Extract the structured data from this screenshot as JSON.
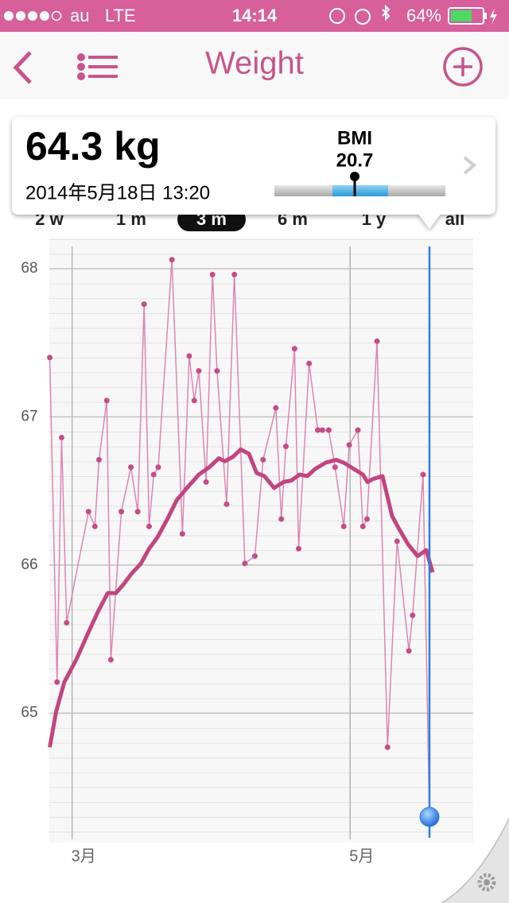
{
  "status_bar": {
    "carrier": "au",
    "network": "LTE",
    "time": "14:14",
    "battery": "64%"
  },
  "nav": {
    "title": "Weight"
  },
  "summary": {
    "weight": "64.3 kg",
    "datetime": "2014年5月18日 13:20",
    "bmi_label": "BMI",
    "bmi": "20.7"
  },
  "range_tabs": {
    "options": [
      "2 w",
      "1 m",
      "3 m",
      "6 m",
      "1 y",
      "all"
    ],
    "selected": 2
  },
  "chart_data": {
    "type": "line",
    "xlim": [
      -5,
      88
    ],
    "ylim": [
      64.18,
      68.15
    ],
    "xticks": [
      {
        "value": 0,
        "label": "3月"
      },
      {
        "value": 61,
        "label": "5月"
      }
    ],
    "yticks": [
      65,
      66,
      67,
      68
    ],
    "grid": true,
    "cursor_color": "#2f7fe0",
    "series": [
      {
        "color": "#dc86b3",
        "marker_color": "#c74b88",
        "line_width": 1.5,
        "markers": true,
        "x": [
          -4.9,
          -3.3,
          -2.3,
          -1.2,
          3.6,
          5.0,
          5.9,
          7.6,
          8.5,
          10.8,
          12.9,
          14.4,
          15.8,
          16.9,
          17.9,
          18.9,
          21.9,
          24.2,
          25.7,
          26.8,
          27.8,
          29.4,
          30.8,
          31.8,
          33.9,
          35.6,
          37.9,
          40.1,
          41.9,
          44.7,
          45.9,
          46.9,
          48.8,
          49.7,
          52.0,
          53.9,
          54.9,
          56.3,
          57.7,
          59.6,
          60.8,
          62.7,
          63.8,
          64.7,
          66.9,
          69.2,
          71.3,
          73.9,
          74.7,
          77.0,
          78.4
        ],
        "values": [
          67.4,
          65.21,
          66.86,
          65.61,
          66.36,
          66.26,
          66.71,
          67.11,
          65.36,
          66.36,
          66.66,
          66.36,
          67.76,
          66.26,
          66.61,
          66.66,
          68.06,
          66.21,
          67.41,
          67.11,
          67.31,
          66.56,
          67.96,
          67.31,
          66.41,
          67.96,
          66.01,
          66.06,
          66.71,
          67.06,
          66.31,
          66.8,
          67.46,
          66.11,
          67.36,
          66.91,
          66.91,
          66.91,
          66.66,
          66.26,
          66.81,
          66.91,
          66.26,
          66.31,
          67.51,
          64.77,
          66.16,
          65.42,
          65.66,
          66.61,
          64.3
        ]
      },
      {
        "color": "#c2457f",
        "line_width": 5,
        "markers": false,
        "x": [
          -4.9,
          -3.5,
          -1.7,
          0.9,
          3.5,
          5.6,
          7.8,
          9.6,
          11.3,
          13.0,
          15.1,
          16.9,
          18.8,
          20.9,
          23.0,
          25.2,
          27.8,
          30.1,
          32.2,
          33.5,
          35.3,
          37.0,
          38.8,
          40.5,
          42.2,
          44.3,
          46.4,
          48.1,
          49.9,
          51.6,
          53.4,
          55.6,
          57.9,
          59.6,
          61.7,
          63.8,
          64.8,
          66.0,
          68.1,
          70.2,
          71.8,
          73.7,
          75.8,
          77.7,
          79.1
        ],
        "values": [
          64.77,
          65.01,
          65.21,
          65.36,
          65.54,
          65.68,
          65.81,
          65.81,
          65.87,
          65.94,
          66.01,
          66.11,
          66.19,
          66.31,
          66.44,
          66.52,
          66.61,
          66.66,
          66.72,
          66.7,
          66.73,
          66.78,
          66.75,
          66.62,
          66.6,
          66.52,
          66.56,
          66.57,
          66.61,
          66.6,
          66.65,
          66.69,
          66.71,
          66.69,
          66.65,
          66.61,
          66.56,
          66.58,
          66.6,
          66.33,
          66.24,
          66.14,
          66.06,
          66.1,
          65.95
        ]
      }
    ]
  }
}
